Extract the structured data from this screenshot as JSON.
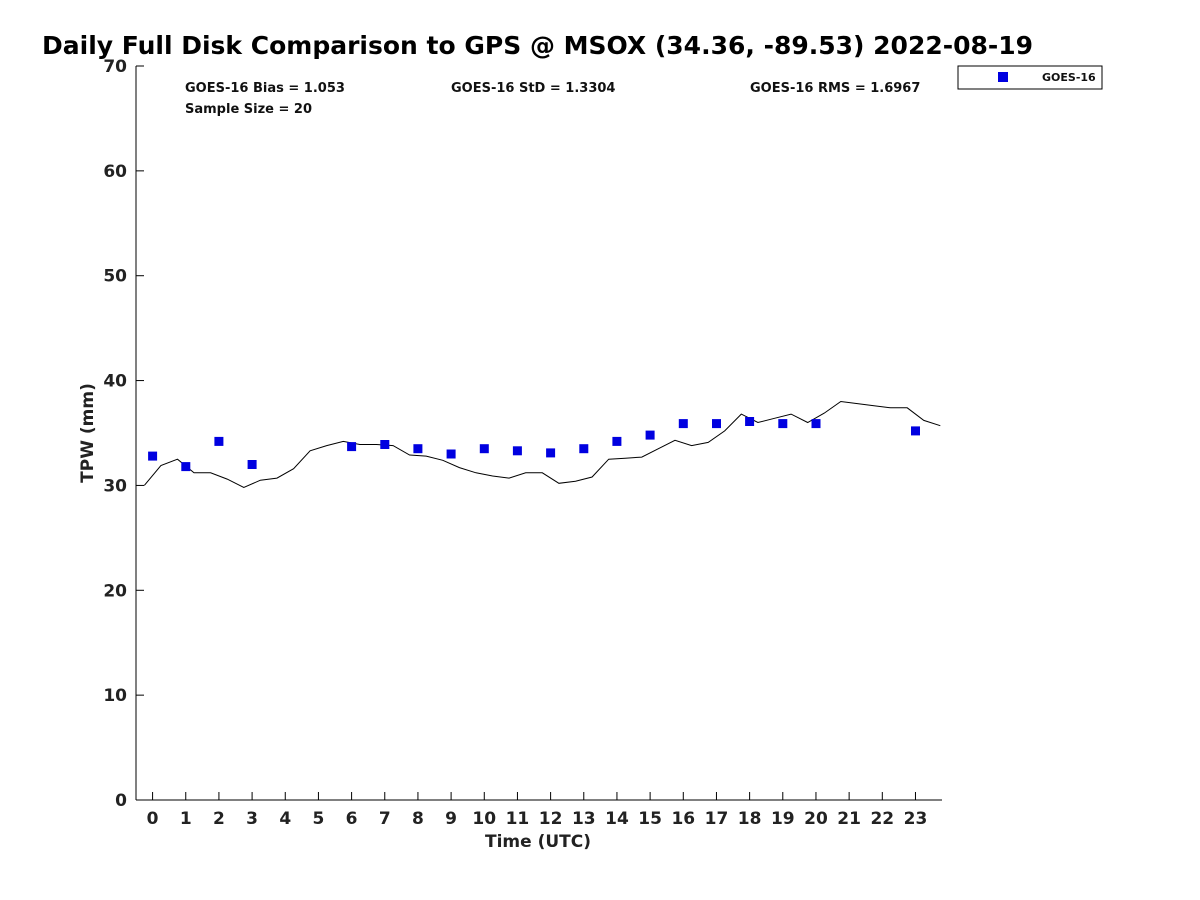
{
  "chart_data": {
    "type": "scatter",
    "title": "Daily Full Disk Comparison to GPS @ MSOX (34.36, -89.53) 2022-08-19",
    "xlabel": "Time (UTC)",
    "ylabel": "TPW (mm)",
    "xlim": [
      -0.5,
      23.8
    ],
    "ylim": [
      0,
      70
    ],
    "x_ticks": [
      0,
      1,
      2,
      3,
      4,
      5,
      6,
      7,
      8,
      9,
      10,
      11,
      12,
      13,
      14,
      15,
      16,
      17,
      18,
      19,
      20,
      21,
      22,
      23
    ],
    "y_ticks": [
      0,
      10,
      20,
      30,
      40,
      50,
      60,
      70
    ],
    "grid": false,
    "legend_position": "top-right, outside plot",
    "stats": {
      "bias": "GOES-16 Bias = 1.053",
      "std": "GOES-16 StD = 1.3304",
      "rms": "GOES-16 RMS = 1.6967",
      "sample": "Sample Size = 20"
    },
    "series": [
      {
        "name": "GOES-16",
        "kind": "scatter",
        "marker": "square",
        "color": "#0000e0",
        "x": [
          0,
          1,
          2,
          3,
          6,
          7,
          8,
          9,
          10,
          11,
          12,
          13,
          14,
          15,
          16,
          17,
          18,
          19,
          20,
          23
        ],
        "y": [
          32.8,
          31.8,
          34.2,
          32.0,
          33.7,
          33.9,
          33.5,
          33.0,
          33.5,
          33.3,
          33.1,
          33.5,
          34.2,
          34.8,
          35.9,
          35.9,
          36.1,
          35.9,
          35.9,
          35.2
        ]
      },
      {
        "kind": "line",
        "color": "#000000",
        "x": [
          -0.25,
          0.25,
          0.75,
          1.25,
          1.75,
          2.25,
          2.75,
          3.25,
          3.75,
          4.25,
          4.75,
          5.25,
          5.75,
          6.25,
          6.75,
          7.25,
          7.75,
          8.25,
          8.75,
          9.25,
          9.75,
          10.25,
          10.75,
          11.25,
          11.75,
          12.25,
          12.75,
          13.25,
          13.75,
          14.25,
          14.75,
          15.25,
          15.75,
          16.25,
          16.75,
          17.25,
          17.75,
          18.25,
          18.75,
          19.25,
          19.75,
          20.25,
          20.75,
          21.25,
          21.75,
          22.25,
          22.75,
          23.25,
          23.75
        ],
        "y": [
          30.0,
          31.9,
          32.5,
          31.2,
          31.2,
          30.6,
          29.8,
          30.5,
          30.7,
          31.6,
          33.3,
          33.8,
          34.2,
          33.9,
          33.9,
          33.8,
          32.9,
          32.8,
          32.4,
          31.7,
          31.2,
          30.9,
          30.7,
          31.2,
          31.2,
          30.2,
          30.4,
          30.8,
          32.5,
          32.6,
          32.7,
          33.5,
          34.3,
          33.8,
          34.1,
          35.2,
          36.8,
          36.0,
          36.4,
          36.8,
          36.0,
          36.9,
          38.0,
          37.8,
          37.6,
          37.4,
          37.4,
          36.2,
          35.7
        ]
      }
    ]
  }
}
